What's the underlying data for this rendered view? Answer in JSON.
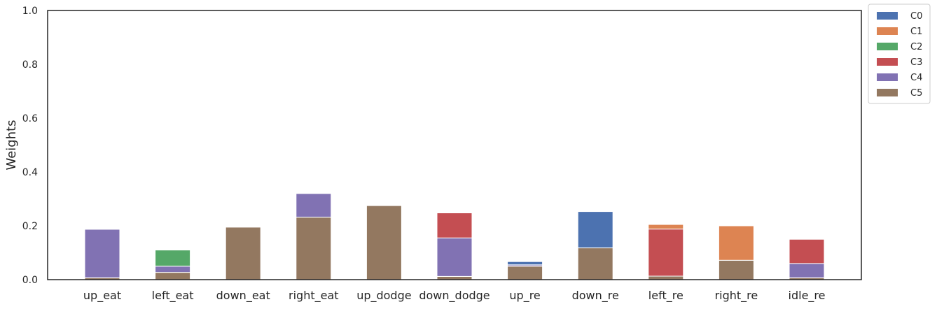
{
  "chart_data": {
    "type": "bar",
    "stacked": true,
    "categories": [
      "up_eat",
      "left_eat",
      "down_eat",
      "right_eat",
      "up_dodge",
      "down_dodge",
      "up_re",
      "down_re",
      "left_re",
      "right_re",
      "idle_re"
    ],
    "series": [
      {
        "name": "C0",
        "color": "#4c72b0",
        "values": [
          0.0,
          0.0,
          0.0,
          0.0,
          0.0,
          0.0,
          0.012,
          0.135,
          0.0,
          0.0,
          0.0
        ]
      },
      {
        "name": "C1",
        "color": "#dd8452",
        "values": [
          0.0,
          0.0,
          0.0,
          0.0,
          0.0,
          0.0,
          0.0,
          0.0,
          0.017,
          0.128,
          0.0
        ]
      },
      {
        "name": "C2",
        "color": "#55a868",
        "values": [
          0.0,
          0.06,
          0.0,
          0.0,
          0.0,
          0.0,
          0.0,
          0.0,
          0.0,
          0.0,
          0.0
        ]
      },
      {
        "name": "C3",
        "color": "#c44e52",
        "values": [
          0.0,
          0.0,
          0.0,
          0.0,
          0.0,
          0.093,
          0.0,
          0.0,
          0.175,
          0.0,
          0.09
        ]
      },
      {
        "name": "C4",
        "color": "#8172b3",
        "values": [
          0.18,
          0.023,
          0.0,
          0.088,
          0.0,
          0.143,
          0.005,
          0.0,
          0.0,
          0.0,
          0.053
        ]
      },
      {
        "name": "C5",
        "color": "#937860",
        "values": [
          0.007,
          0.027,
          0.195,
          0.232,
          0.275,
          0.012,
          0.05,
          0.118,
          0.013,
          0.072,
          0.007
        ]
      }
    ],
    "title": "",
    "xlabel": "",
    "ylabel": "Weights",
    "ylim": [
      0,
      1
    ],
    "yticks": [
      0.0,
      0.2,
      0.4,
      0.6,
      0.8,
      1.0
    ],
    "ytick_labels": [
      "0.0",
      "0.2",
      "0.4",
      "0.6",
      "0.8",
      "1.0"
    ],
    "grid": false,
    "legend_position": "outside-top-right"
  }
}
